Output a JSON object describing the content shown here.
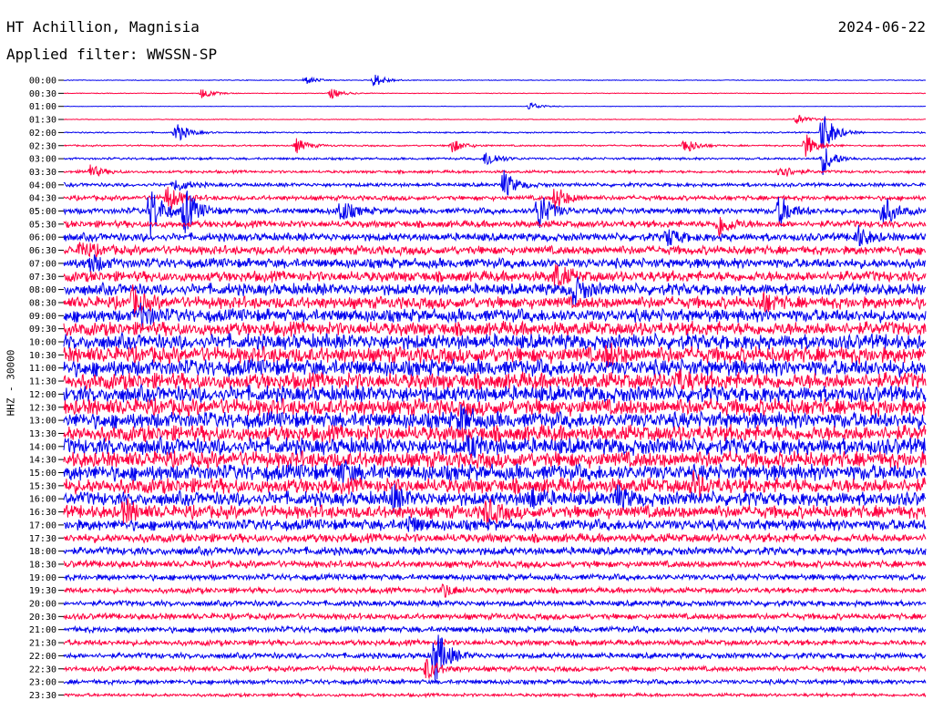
{
  "header": {
    "station": "HT Achillion, Magnisia",
    "date": "2024-06-22",
    "filter": "Applied filter: WWSSN-SP"
  },
  "channel_label": "HHZ - 30000",
  "chart_data": {
    "type": "line",
    "title": "HT Achillion, Magnisia",
    "subtitle": "Applied filter: WWSSN-SP",
    "ylabel": "HHZ - 30000",
    "grid": false,
    "row_labels": [
      "00:00",
      "00:30",
      "01:00",
      "01:30",
      "02:00",
      "02:30",
      "03:00",
      "03:30",
      "04:00",
      "04:30",
      "05:00",
      "05:30",
      "06:00",
      "06:30",
      "07:00",
      "07:30",
      "08:00",
      "08:30",
      "09:00",
      "09:30",
      "10:00",
      "10:30",
      "11:00",
      "11:30",
      "12:00",
      "12:30",
      "13:00",
      "13:30",
      "14:00",
      "14:30",
      "15:00",
      "15:30",
      "16:00",
      "16:30",
      "17:00",
      "17:30",
      "18:00",
      "18:30",
      "19:00",
      "19:30",
      "20:00",
      "20:30",
      "21:00",
      "21:30",
      "22:00",
      "22:30",
      "23:00",
      "23:30"
    ],
    "colors": [
      "#0000ee",
      "#ff0040"
    ],
    "noise_level": [
      0.3,
      0.3,
      0.2,
      0.3,
      0.6,
      0.7,
      1.0,
      1.2,
      1.6,
      2.0,
      2.6,
      3.0,
      3.4,
      3.8,
      4.2,
      4.6,
      5.0,
      5.2,
      5.6,
      6.0,
      6.6,
      7.0,
      7.2,
      7.2,
      7.0,
      7.2,
      7.0,
      7.0,
      7.2,
      7.0,
      7.0,
      6.6,
      6.0,
      5.6,
      4.8,
      3.8,
      3.4,
      3.0,
      2.6,
      2.4,
      2.4,
      2.6,
      2.6,
      2.4,
      2.4,
      2.2,
      2.0,
      1.4
    ],
    "events": [
      {
        "row": 0,
        "t": 0.28,
        "a": 5
      },
      {
        "row": 0,
        "t": 0.36,
        "a": 8
      },
      {
        "row": 1,
        "t": 0.16,
        "a": 6
      },
      {
        "row": 1,
        "t": 0.31,
        "a": 6
      },
      {
        "row": 2,
        "t": 0.54,
        "a": 5
      },
      {
        "row": 3,
        "t": 0.85,
        "a": 6
      },
      {
        "row": 4,
        "t": 0.13,
        "a": 12
      },
      {
        "row": 4,
        "t": 0.88,
        "a": 26
      },
      {
        "row": 5,
        "t": 0.27,
        "a": 8
      },
      {
        "row": 5,
        "t": 0.45,
        "a": 8
      },
      {
        "row": 5,
        "t": 0.72,
        "a": 10
      },
      {
        "row": 5,
        "t": 0.86,
        "a": 14
      },
      {
        "row": 6,
        "t": 0.49,
        "a": 10
      },
      {
        "row": 6,
        "t": 0.88,
        "a": 18
      },
      {
        "row": 7,
        "t": 0.03,
        "a": 8
      },
      {
        "row": 7,
        "t": 0.83,
        "a": 10
      },
      {
        "row": 8,
        "t": 0.51,
        "a": 16
      },
      {
        "row": 8,
        "t": 0.13,
        "a": 8
      },
      {
        "row": 9,
        "t": 0.12,
        "a": 16
      },
      {
        "row": 9,
        "t": 0.57,
        "a": 14
      },
      {
        "row": 10,
        "t": 0.1,
        "a": 30
      },
      {
        "row": 10,
        "t": 0.14,
        "a": 26
      },
      {
        "row": 10,
        "t": 0.55,
        "a": 24
      },
      {
        "row": 10,
        "t": 0.83,
        "a": 18
      },
      {
        "row": 10,
        "t": 0.95,
        "a": 18
      },
      {
        "row": 10,
        "t": 0.32,
        "a": 14
      },
      {
        "row": 11,
        "t": 0.76,
        "a": 14
      },
      {
        "row": 12,
        "t": 0.7,
        "a": 10
      },
      {
        "row": 12,
        "t": 0.92,
        "a": 12
      },
      {
        "row": 13,
        "t": 0.02,
        "a": 10
      },
      {
        "row": 14,
        "t": 0.03,
        "a": 10
      },
      {
        "row": 15,
        "t": 0.57,
        "a": 14
      },
      {
        "row": 16,
        "t": 0.59,
        "a": 16
      },
      {
        "row": 17,
        "t": 0.08,
        "a": 14
      },
      {
        "row": 17,
        "t": 0.81,
        "a": 10
      },
      {
        "row": 18,
        "t": 0.09,
        "a": 12
      },
      {
        "row": 21,
        "t": 0.63,
        "a": 10
      },
      {
        "row": 23,
        "t": 0.71,
        "a": 10
      },
      {
        "row": 26,
        "t": 0.46,
        "a": 12
      },
      {
        "row": 28,
        "t": 0.47,
        "a": 10
      },
      {
        "row": 30,
        "t": 0.32,
        "a": 10
      },
      {
        "row": 31,
        "t": 0.73,
        "a": 12
      },
      {
        "row": 32,
        "t": 0.38,
        "a": 12
      },
      {
        "row": 32,
        "t": 0.54,
        "a": 12
      },
      {
        "row": 32,
        "t": 0.64,
        "a": 12
      },
      {
        "row": 33,
        "t": 0.07,
        "a": 12
      },
      {
        "row": 33,
        "t": 0.49,
        "a": 14
      },
      {
        "row": 34,
        "t": 0.4,
        "a": 8
      },
      {
        "row": 39,
        "t": 0.44,
        "a": 8
      },
      {
        "row": 44,
        "t": 0.43,
        "a": 34
      },
      {
        "row": 45,
        "t": 0.42,
        "a": 12
      }
    ]
  }
}
